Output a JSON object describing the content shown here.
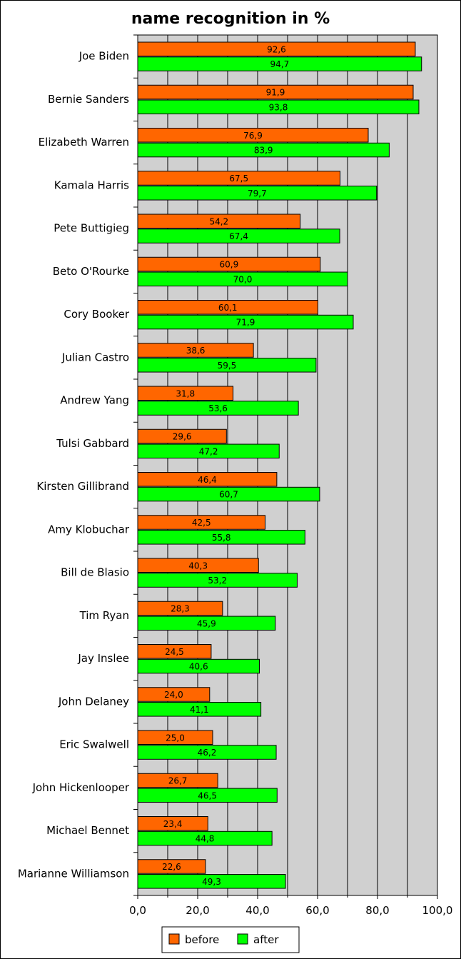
{
  "chart_data": {
    "type": "bar",
    "orientation": "horizontal",
    "title": "name recognition in %",
    "xlabel": "",
    "ylabel": "",
    "xlim": [
      0,
      100
    ],
    "x_ticks": [
      "0,0",
      "20,0",
      "40,0",
      "60,0",
      "80,0",
      "100,0"
    ],
    "grid": true,
    "legend_position": "bottom-center",
    "categories": [
      "Joe Biden",
      "Bernie Sanders",
      "Elizabeth Warren",
      "Kamala Harris",
      "Pete Buttigieg",
      "Beto O'Rourke",
      "Cory Booker",
      "Julian Castro",
      "Andrew Yang",
      "Tulsi Gabbard",
      "Kirsten Gillibrand",
      "Amy Klobuchar",
      "Bill de Blasio",
      "Tim Ryan",
      "Jay Inslee",
      "John Delaney",
      "Eric Swalwell",
      "John Hickenlooper",
      "Michael Bennet",
      "Marianne Williamson"
    ],
    "series": [
      {
        "name": "before",
        "color": "#ff6600",
        "values": [
          92.6,
          91.9,
          76.9,
          67.5,
          54.2,
          60.9,
          60.1,
          38.6,
          31.8,
          29.6,
          46.4,
          42.5,
          40.3,
          28.3,
          24.5,
          24.0,
          25.0,
          26.7,
          23.4,
          22.6
        ],
        "labels": [
          "92,6",
          "91,9",
          "76,9",
          "67,5",
          "54,2",
          "60,9",
          "60,1",
          "38,6",
          "31,8",
          "29,6",
          "46,4",
          "42,5",
          "40,3",
          "28,3",
          "24,5",
          "24,0",
          "25,0",
          "26,7",
          "23,4",
          "22,6"
        ]
      },
      {
        "name": "after",
        "color": "#00ff00",
        "values": [
          94.7,
          93.8,
          83.9,
          79.7,
          67.4,
          70.0,
          71.9,
          59.5,
          53.6,
          47.2,
          60.7,
          55.8,
          53.2,
          45.9,
          40.6,
          41.1,
          46.2,
          46.5,
          44.8,
          49.3
        ],
        "labels": [
          "94,7",
          "93,8",
          "83,9",
          "79,7",
          "67,4",
          "70,0",
          "71,9",
          "59,5",
          "53,6",
          "47,2",
          "60,7",
          "55,8",
          "53,2",
          "45,9",
          "40,6",
          "41,1",
          "46,2",
          "46,5",
          "44,8",
          "49,3"
        ]
      }
    ],
    "colors": {
      "plot_background": "#d0d0d0",
      "grid": "#000000",
      "frame": "#000000"
    }
  }
}
